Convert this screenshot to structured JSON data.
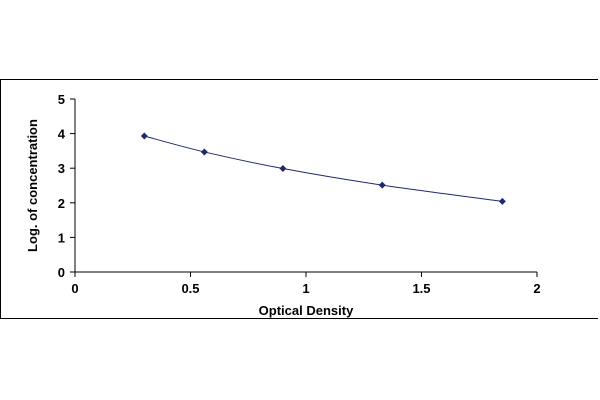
{
  "chart_data": {
    "type": "scatter",
    "xlabel": "Optical Density",
    "ylabel": "Log. of concentration",
    "xlim": [
      0,
      2
    ],
    "ylim": [
      0,
      5
    ],
    "xticks": [
      "0",
      "0.5",
      "1",
      "1.5",
      "2"
    ],
    "yticks": [
      "0",
      "1",
      "2",
      "3",
      "4",
      "5"
    ],
    "grid": false,
    "trendline": "smooth",
    "series": [
      {
        "x": [
          0.3,
          0.56,
          0.9,
          1.33,
          1.85
        ],
        "y": [
          3.93,
          3.47,
          2.99,
          2.51,
          2.04
        ],
        "color": "#1f2a6b",
        "marker": "diamond"
      }
    ]
  }
}
